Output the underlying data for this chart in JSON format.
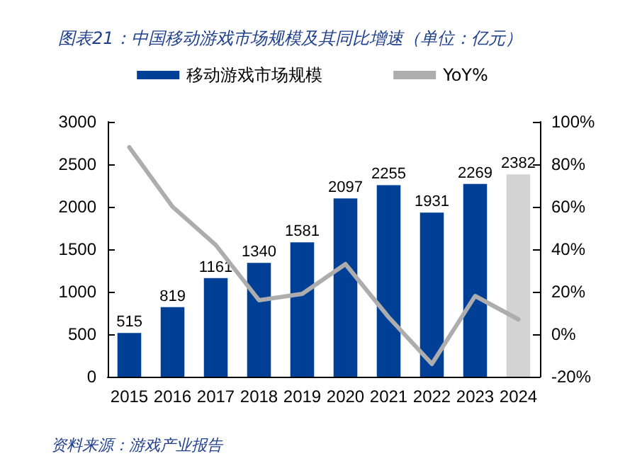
{
  "chart_data": {
    "type": "bar",
    "title": "图表21：中国移动游戏市场规模及其同比增速（单位：亿元）",
    "categories": [
      "2015",
      "2016",
      "2017",
      "2018",
      "2019",
      "2020",
      "2021",
      "2022",
      "2023",
      "2024"
    ],
    "series": [
      {
        "name": "移动游戏市场规模",
        "color": "#003f96",
        "colors": [
          "#003f96",
          "#003f96",
          "#003f96",
          "#003f96",
          "#003f96",
          "#003f96",
          "#003f96",
          "#003f96",
          "#003f96",
          "#d3d3d3"
        ],
        "values": [
          515,
          819,
          1161,
          1340,
          1581,
          2097,
          2255,
          1931,
          2269,
          2382
        ],
        "data_labels": true
      },
      {
        "name": "YoY%",
        "type": "line",
        "axis": "y2",
        "color": "#adadad",
        "values": [
          88,
          60,
          42,
          16,
          19,
          33,
          8,
          -14,
          18,
          7
        ]
      }
    ],
    "ylim": [
      0,
      3000
    ],
    "yticks": [
      0,
      500,
      1000,
      1500,
      2000,
      2500,
      3000
    ],
    "y2lim": [
      -20,
      100
    ],
    "y2ticks": [
      {
        "value": -20,
        "label": "-20%"
      },
      {
        "value": 0,
        "label": "0%"
      },
      {
        "value": 20,
        "label": "20%"
      },
      {
        "value": 40,
        "label": "40%"
      },
      {
        "value": 60,
        "label": "60%"
      },
      {
        "value": 80,
        "label": "80%"
      },
      {
        "value": 100,
        "label": "100%"
      }
    ],
    "grid": false,
    "legend": "top",
    "marker": "none",
    "line_style": "solid",
    "annotations": [
      "资料来源：游戏产业报告"
    ]
  }
}
